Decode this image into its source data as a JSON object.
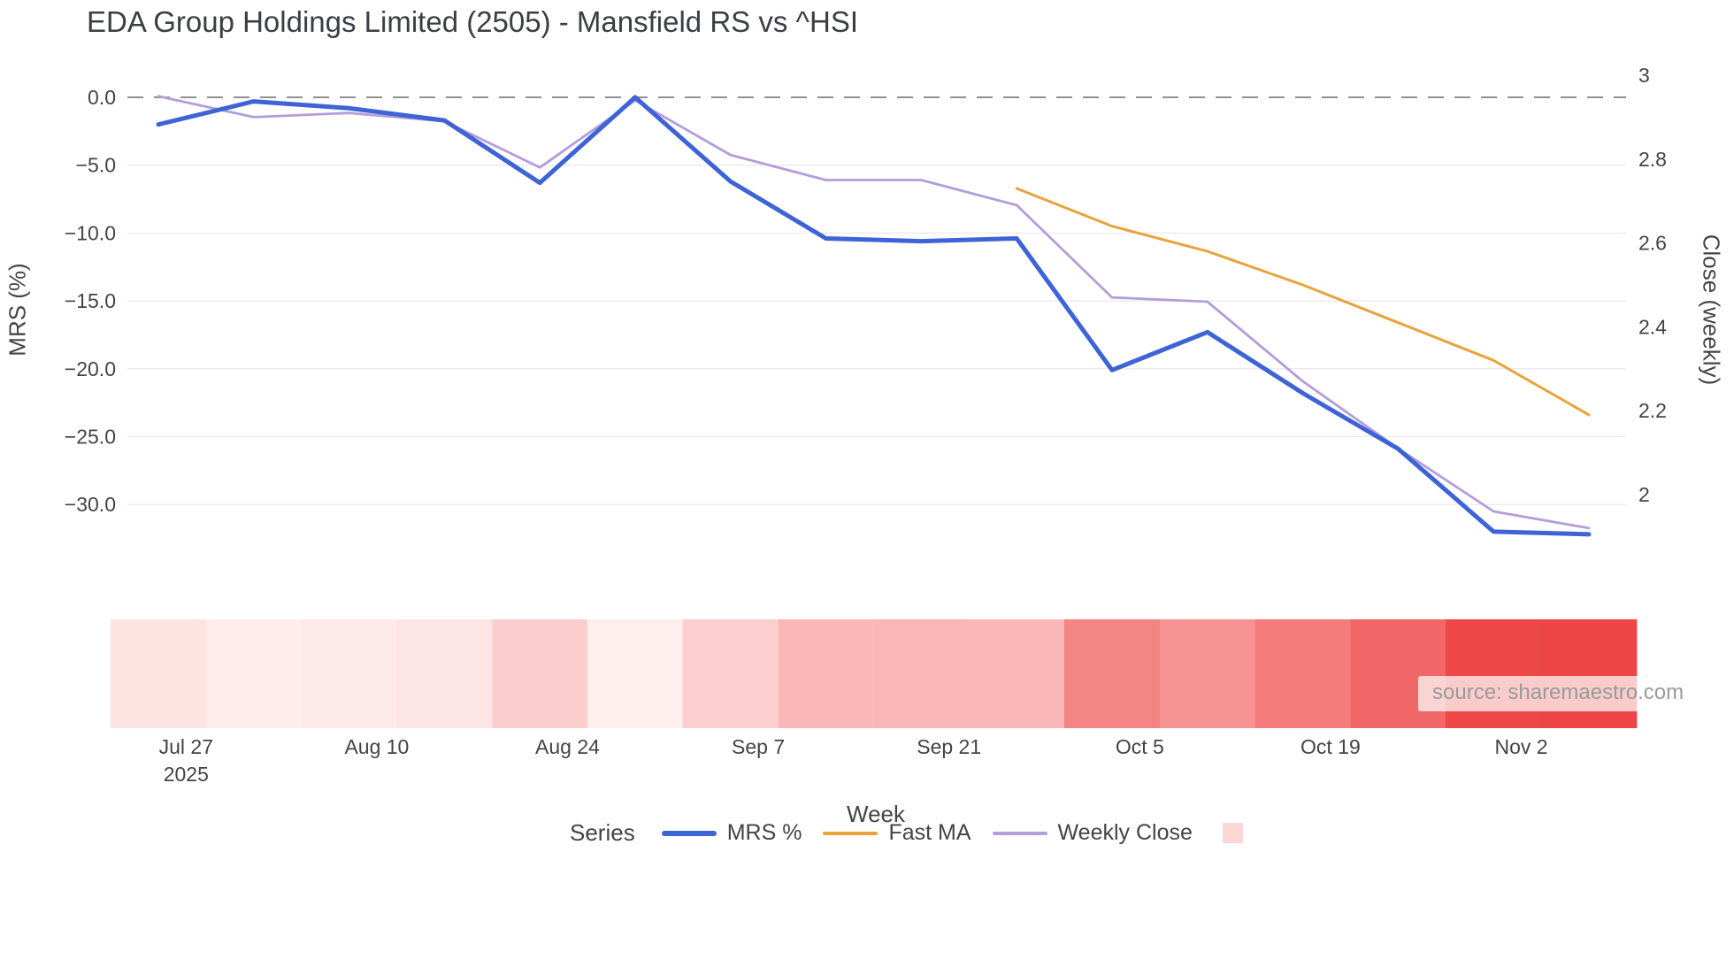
{
  "chart_data": {
    "type": "line",
    "title": "EDA Group Holdings Limited (2505) - Mansfield RS vs ^HSI",
    "legend_title": "Series",
    "watermark": "source: sharemaestro.com",
    "x_axis": {
      "label": "Week",
      "n_points": 16,
      "ticks": [
        {
          "label": "Jul 27",
          "sublabel": "2025"
        },
        {
          "label": "Aug 10"
        },
        {
          "label": "Aug 24"
        },
        {
          "label": "Sep 7"
        },
        {
          "label": "Sep 21"
        },
        {
          "label": "Oct 5"
        },
        {
          "label": "Oct 19"
        },
        {
          "label": "Nov 2"
        }
      ]
    },
    "y_axis_left": {
      "label": "MRS (%)",
      "tick_labels": [
        "0.0",
        "−5.0",
        "−10.0",
        "−15.0",
        "−20.0",
        "−25.0",
        "−30.0"
      ],
      "tick_values": [
        0,
        -5,
        -10,
        -15,
        -20,
        -25,
        -30
      ],
      "range": [
        -36,
        2.3
      ]
    },
    "y_axis_right": {
      "label": "Close (weekly)",
      "tick_labels": [
        "3",
        "2.8",
        "2.6",
        "2.4",
        "2.2",
        "2"
      ],
      "tick_values": [
        3,
        2.8,
        2.6,
        2.4,
        2.2,
        2
      ],
      "range": [
        1.78,
        3.02
      ]
    },
    "zero_line": {
      "value": 0,
      "style": "dashed",
      "color": "#909090"
    },
    "grid": {
      "horizontal": true,
      "vertical": false,
      "color": "#ebecf1"
    },
    "series": [
      {
        "name": "MRS %",
        "axis": "left",
        "color": "#3e63d6",
        "width": 5,
        "values": [
          -2.0,
          -0.3,
          -0.8,
          -1.7,
          -6.3,
          0.0,
          -6.2,
          -10.4,
          -10.6,
          -10.4,
          -20.1,
          -17.3,
          -21.8,
          -25.9,
          -32.0,
          -32.2
        ]
      },
      {
        "name": "Fast MA",
        "axis": "right",
        "color": "#e8a33c",
        "width": 3,
        "values": [
          null,
          null,
          null,
          null,
          null,
          null,
          null,
          null,
          null,
          2.73,
          2.64,
          2.58,
          2.5,
          2.41,
          2.32,
          2.19
        ]
      },
      {
        "name": "Weekly Close",
        "axis": "right",
        "color": "#b39ddb",
        "width": 2.8,
        "values": [
          2.95,
          2.9,
          2.91,
          2.89,
          2.78,
          2.94,
          2.81,
          2.75,
          2.75,
          2.69,
          2.47,
          2.46,
          2.27,
          2.11,
          1.96,
          1.92
        ]
      }
    ],
    "heatmap_strip": {
      "colors": [
        "#fee3e3",
        "#ffecec",
        "#ffeaea",
        "#fee5e5",
        "#fccdcd",
        "#ffeeee",
        "#fccece",
        "#fab8b8",
        "#f9b7b7",
        "#fab8b8",
        "#f48585",
        "#f69494",
        "#f47c7c",
        "#f16767",
        "#ee4747",
        "#ee4646"
      ],
      "legend_color": "#fdd7d7"
    }
  }
}
